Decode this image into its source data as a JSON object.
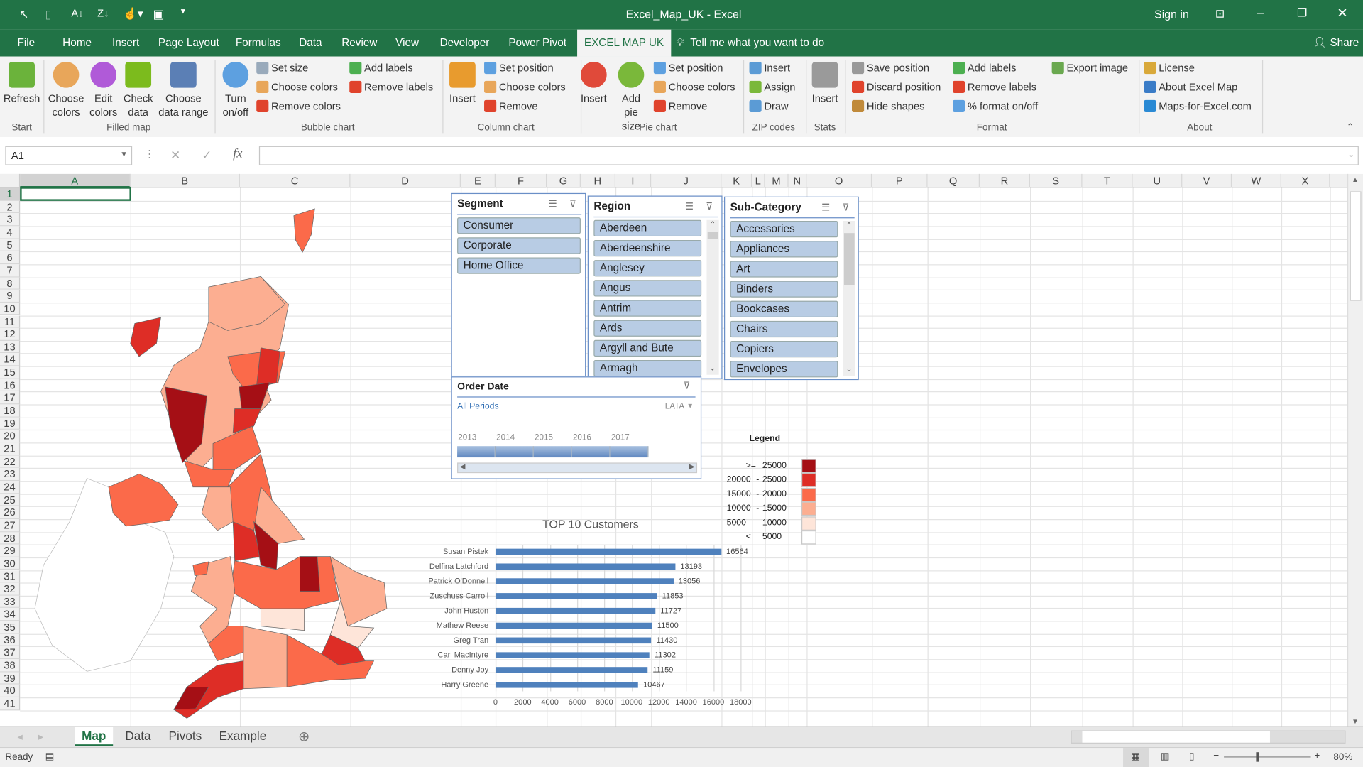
{
  "window": {
    "title": "Excel_Map_UK  -  Excel",
    "sign_in": "Sign in"
  },
  "menu": {
    "tabs": [
      "File",
      "Home",
      "Insert",
      "Page Layout",
      "Formulas",
      "Data",
      "Review",
      "View",
      "Developer",
      "Power Pivot",
      "EXCEL MAP UK"
    ],
    "active": "EXCEL MAP UK",
    "tell_me": "Tell me what you want to do",
    "share": "Share"
  },
  "ribbon": {
    "groups": [
      "Start",
      "Filled map",
      "Bubble chart",
      "Column chart",
      "Pie chart",
      "ZIP codes",
      "Stats",
      "Format",
      "About"
    ],
    "big_buttons": [
      {
        "label": "Refresh",
        "icon": "refresh-icon",
        "color": "#6bb33b"
      },
      {
        "label": "Choose colors",
        "icon": "palette-icon",
        "color": "#e8a65a"
      },
      {
        "label": "Edit colors",
        "icon": "color-wheel-icon",
        "color": "#b05ad8"
      },
      {
        "label": "Check data",
        "icon": "checkmark-icon",
        "color": "#7cbb1d"
      },
      {
        "label": "Choose data range",
        "icon": "data-range-icon",
        "color": "#5b7fb5"
      },
      {
        "label": "Turn on/off",
        "icon": "bubbles-icon",
        "color": "#5da0e0"
      },
      {
        "label": "Insert",
        "icon": "column-chart-icon",
        "color": "#e89b2e"
      },
      {
        "label": "Insert",
        "icon": "pie-chart-icon",
        "color": "#e04a3a"
      },
      {
        "label": "Add pie size",
        "icon": "pie-add-icon",
        "color": "#7ab83a"
      },
      {
        "label": "Insert",
        "icon": "database-icon",
        "color": "#9a9a9a"
      }
    ],
    "small_buttons": [
      {
        "label": "Set size",
        "icon": "slider-icon",
        "color": "#9ab"
      },
      {
        "label": "Choose colors",
        "icon": "palette-icon",
        "color": "#e8a65a"
      },
      {
        "label": "Remove colors",
        "icon": "remove-icon",
        "color": "#e0432c"
      },
      {
        "label": "Add labels",
        "icon": "add-labels-icon",
        "color": "#4caf50"
      },
      {
        "label": "Remove labels",
        "icon": "remove-labels-icon",
        "color": "#e0432c"
      },
      {
        "label": "Set position",
        "icon": "move-icon",
        "color": "#5da0e0"
      },
      {
        "label": "Choose colors",
        "icon": "palette-icon",
        "color": "#e8a65a"
      },
      {
        "label": "Remove",
        "icon": "remove-icon",
        "color": "#e0432c"
      },
      {
        "label": "Set position",
        "icon": "move-icon",
        "color": "#5da0e0"
      },
      {
        "label": "Choose colors",
        "icon": "palette-icon",
        "color": "#e8a65a"
      },
      {
        "label": "Remove",
        "icon": "remove-icon",
        "color": "#e0432c"
      },
      {
        "label": "Insert",
        "icon": "zip-insert-icon",
        "color": "#5b9bd5"
      },
      {
        "label": "Assign",
        "icon": "zip-assign-icon",
        "color": "#7ab83a"
      },
      {
        "label": "Draw",
        "icon": "zip-draw-icon",
        "color": "#5b9bd5"
      },
      {
        "label": "Save position",
        "icon": "anchor-icon",
        "color": "#999"
      },
      {
        "label": "Discard position",
        "icon": "remove-icon",
        "color": "#e0432c"
      },
      {
        "label": "Hide shapes",
        "icon": "eye-icon",
        "color": "#c08a3a"
      },
      {
        "label": "Add labels",
        "icon": "add-labels-icon",
        "color": "#4caf50"
      },
      {
        "label": "Remove labels",
        "icon": "remove-labels-icon",
        "color": "#e0432c"
      },
      {
        "label": "% format on/off",
        "icon": "percent-icon",
        "color": "#5da0e0"
      },
      {
        "label": "Export image",
        "icon": "image-icon",
        "color": "#6aa84f"
      },
      {
        "label": "License",
        "icon": "key-icon",
        "color": "#d9a93a"
      },
      {
        "label": "About Excel Map",
        "icon": "info-icon",
        "color": "#3a7cc7"
      },
      {
        "label": "Maps-for-Excel.com",
        "icon": "website-icon",
        "color": "#2a8ad4"
      }
    ]
  },
  "formula_bar": {
    "name_box": "A1",
    "fx": "fx",
    "value": ""
  },
  "columns": [
    "A",
    "B",
    "C",
    "D",
    "E",
    "F",
    "G",
    "H",
    "I",
    "J",
    "K",
    "L",
    "M",
    "N",
    "O",
    "P",
    "Q",
    "R",
    "S",
    "T",
    "U",
    "V",
    "W",
    "X"
  ],
  "rows": [
    "1",
    "2",
    "3",
    "4",
    "5",
    "6",
    "7",
    "8",
    "9",
    "10",
    "11",
    "12",
    "13",
    "14",
    "15",
    "16",
    "17",
    "18",
    "19",
    "20",
    "21",
    "22",
    "23",
    "24",
    "25",
    "26",
    "27",
    "28",
    "29",
    "30",
    "31",
    "32",
    "33",
    "34",
    "35",
    "36",
    "37",
    "38",
    "39",
    "40",
    "41"
  ],
  "slicers": {
    "segment": {
      "title": "Segment",
      "items": [
        "Consumer",
        "Corporate",
        "Home Office"
      ]
    },
    "region": {
      "title": "Region",
      "items": [
        "Aberdeen",
        "Aberdeenshire",
        "Anglesey",
        "Angus",
        "Antrim",
        "Ards",
        "Argyll and Bute",
        "Armagh"
      ]
    },
    "subcategory": {
      "title": "Sub-Category",
      "items": [
        "Accessories",
        "Appliances",
        "Art",
        "Binders",
        "Bookcases",
        "Chairs",
        "Copiers",
        "Envelopes"
      ]
    }
  },
  "timeline": {
    "title": "Order Date",
    "periods": "All Periods",
    "level": "LATA",
    "years": [
      "2013",
      "2014",
      "2015",
      "2016",
      "2017"
    ]
  },
  "legend": {
    "title": "Legend",
    "rows": [
      {
        "op": ">=",
        "from": "",
        "to": "25000",
        "color": "#a50f15"
      },
      {
        "op": "-",
        "from": "20000",
        "to": "25000",
        "color": "#de2d26"
      },
      {
        "op": "-",
        "from": "15000",
        "to": "20000",
        "color": "#fb6a4a"
      },
      {
        "op": "-",
        "from": "10000",
        "to": "15000",
        "color": "#fcae91"
      },
      {
        "op": "-",
        "from": "5000",
        "to": "10000",
        "color": "#fee5d9"
      },
      {
        "op": "<",
        "from": "",
        "to": "5000",
        "color": "#ffffff"
      }
    ]
  },
  "chart_data": {
    "type": "bar",
    "title": "TOP 10 Customers",
    "categories": [
      "Susan Pistek",
      "Delfina Latchford",
      "Patrick O'Donnell",
      "Zuschuss Carroll",
      "John Huston",
      "Mathew Reese",
      "Greg Tran",
      "Cari MacIntyre",
      "Denny Joy",
      "Harry Greene"
    ],
    "values": [
      16564,
      13193,
      13056,
      11853,
      11727,
      11500,
      11430,
      11302,
      11159,
      10467
    ],
    "xlim": [
      0,
      18000
    ],
    "xticks": [
      "0",
      "2000",
      "4000",
      "6000",
      "8000",
      "10000",
      "12000",
      "14000",
      "16000",
      "18000"
    ],
    "grid": true,
    "bar_color": "#4f81bd",
    "data_labels": true
  },
  "sheets": {
    "tabs": [
      "Map",
      "Data",
      "Pivots",
      "Example"
    ],
    "active": "Map"
  },
  "status": {
    "ready": "Ready",
    "zoom": "80%"
  }
}
